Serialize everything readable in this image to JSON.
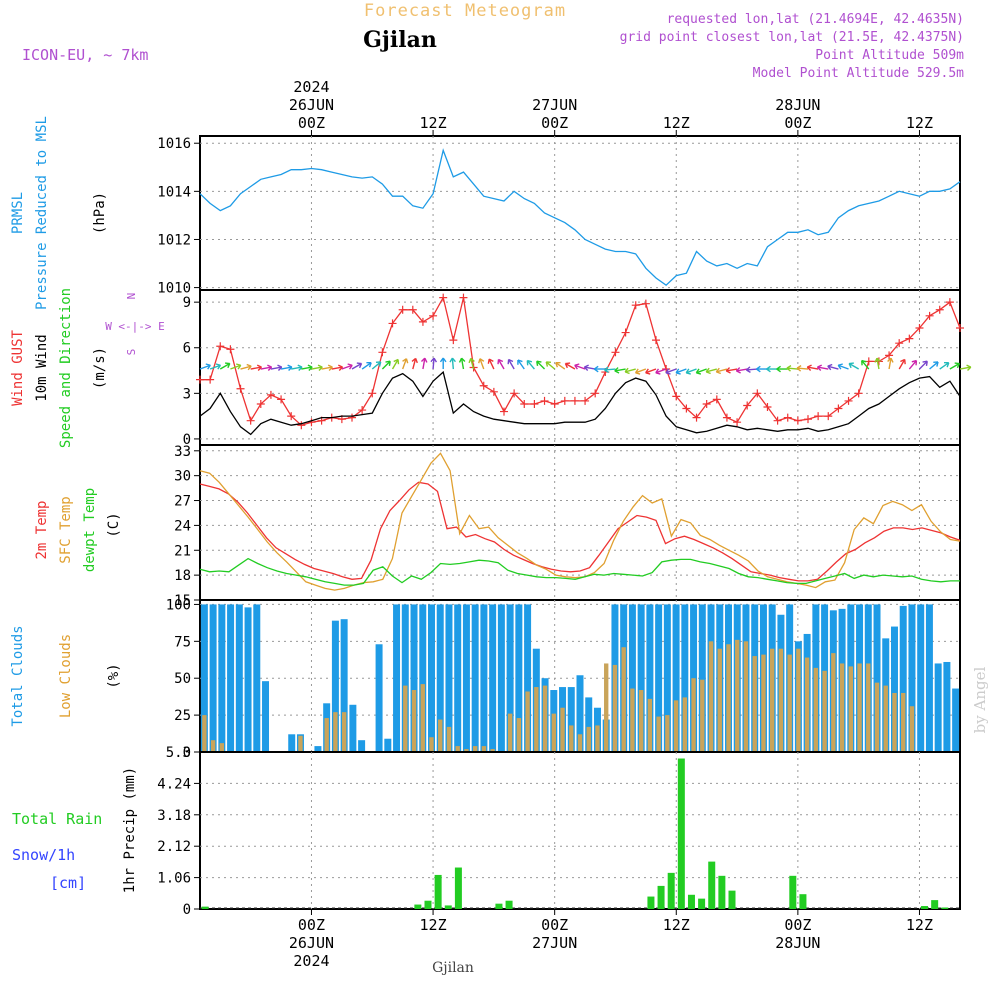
{
  "header": {
    "title": "Forecast Meteogram",
    "location": "Gjilan",
    "model": "ICON-EU, ~ 7km",
    "requested": "requested lon,lat (21.4694E, 42.4635N)",
    "grid_point": "grid point closest lon,lat (21.5E, 42.4375N)",
    "point_altitude": "Point Altitude 509m",
    "model_altitude": "Model Point Altitude 529.5m",
    "footer_location": "Gjilan",
    "watermark": "by Angel"
  },
  "time_axis": {
    "top": [
      {
        "hour": 24,
        "lines": [
          "2024",
          "26JUN",
          "00Z"
        ]
      },
      {
        "hour": 36,
        "lines": [
          "12Z"
        ]
      },
      {
        "hour": 48,
        "lines": [
          "27JUN",
          "00Z"
        ]
      },
      {
        "hour": 60,
        "lines": [
          "12Z"
        ]
      },
      {
        "hour": 72,
        "lines": [
          "28JUN",
          "00Z"
        ]
      },
      {
        "hour": 84,
        "lines": [
          "12Z"
        ]
      }
    ],
    "bottom": [
      {
        "hour": 24,
        "lines": [
          "00Z",
          "26JUN",
          "2024"
        ]
      },
      {
        "hour": 36,
        "lines": [
          "12Z"
        ]
      },
      {
        "hour": 48,
        "lines": [
          "00Z",
          "27JUN"
        ]
      },
      {
        "hour": 60,
        "lines": [
          "12Z"
        ]
      },
      {
        "hour": 72,
        "lines": [
          "00Z",
          "28JUN"
        ]
      },
      {
        "hour": 84,
        "lines": [
          "12Z"
        ]
      }
    ]
  },
  "colors": {
    "blue": "#1e9be6",
    "red": "#ee3333",
    "orange": "#e0a030",
    "green": "#22cc22",
    "purple": "#b050d0",
    "title": "#f0c070",
    "snow": "#3344ff",
    "low": "#c9a45a"
  },
  "chart_data": [
    {
      "type": "line",
      "panel": "pressure",
      "ylabel": [
        "PRMSL",
        "Pressure Reduced to MSL",
        "(hPa)"
      ],
      "ylim": [
        1009.9,
        1016.3
      ],
      "yticks": [
        "1010",
        "1012",
        "1014",
        "1016"
      ],
      "x_start_hour": 13,
      "x_end_hour": 88,
      "series": [
        {
          "values": [
            1013.9,
            1013.5,
            1013.2,
            1013.4,
            1013.9,
            1014.2,
            1014.5,
            1014.6,
            1014.7,
            1014.9,
            1014.9,
            1014.95,
            1014.9,
            1014.8,
            1014.7,
            1014.6,
            1014.55,
            1014.6,
            1014.3,
            1013.8,
            1013.8,
            1013.4,
            1013.3,
            1013.9,
            1015.7,
            1014.6,
            1014.8,
            1014.3,
            1013.8,
            1013.7,
            1013.6,
            1014.0,
            1013.7,
            1013.5,
            1013.1,
            1012.9,
            1012.7,
            1012.4,
            1012.0,
            1011.8,
            1011.6,
            1011.5,
            1011.5,
            1011.4,
            1010.8,
            1010.4,
            1010.1,
            1010.5,
            1010.6,
            1011.5,
            1011.1,
            1010.9,
            1011.0,
            1010.8,
            1011.0,
            1010.9,
            1011.7,
            1012.0,
            1012.3,
            1012.3,
            1012.4,
            1012.2,
            1012.3,
            1012.9,
            1013.2,
            1013.4,
            1013.5,
            1013.6,
            1013.8,
            1014.0,
            1013.9,
            1013.8,
            1014.0,
            1014.0,
            1014.1,
            1014.4
          ]
        }
      ]
    },
    {
      "type": "line",
      "panel": "wind",
      "ylabel": [
        "Wind GUST",
        "10m Wind",
        "Speed and Direction",
        "(m/s)"
      ],
      "compass": [
        "N",
        "W <-|-> E",
        "S"
      ],
      "ylim": [
        -0.4,
        9.8
      ],
      "yticks": [
        "0",
        "3",
        "6",
        "9"
      ],
      "x_start_hour": 13,
      "x_end_hour": 88,
      "series": [
        {
          "name": "Wind GUST",
          "values": [
            3.9,
            3.9,
            6.1,
            5.9,
            3.3,
            1.2,
            2.3,
            2.9,
            2.6,
            1.5,
            0.9,
            1.1,
            1.2,
            1.4,
            1.3,
            1.4,
            1.9,
            3.0,
            5.7,
            7.6,
            8.5,
            8.5,
            7.7,
            8.1,
            9.3,
            6.5,
            9.3,
            4.7,
            3.5,
            3.1,
            1.8,
            3.0,
            2.3,
            2.3,
            2.5,
            2.3,
            2.5,
            2.5,
            2.5,
            3.0,
            4.4,
            5.7,
            7.0,
            8.8,
            8.9,
            6.5,
            4.6,
            2.8,
            2.0,
            1.4,
            2.3,
            2.6,
            1.4,
            1.1,
            2.2,
            3.0,
            2.1,
            1.2,
            1.4,
            1.2,
            1.3,
            1.5,
            1.5,
            2.0,
            2.5,
            3.0,
            5.1,
            5.1,
            5.5,
            6.3,
            6.6,
            7.3,
            8.1,
            8.5,
            9.0,
            7.3
          ]
        },
        {
          "name": "10m Wind",
          "values": [
            1.5,
            2.0,
            3.0,
            1.8,
            0.8,
            0.3,
            1.0,
            1.3,
            1.1,
            0.9,
            1.0,
            1.2,
            1.4,
            1.4,
            1.5,
            1.5,
            1.6,
            1.7,
            3.0,
            4.0,
            4.3,
            3.8,
            2.8,
            3.8,
            4.4,
            1.7,
            2.3,
            1.8,
            1.5,
            1.3,
            1.2,
            1.1,
            1.0,
            1.0,
            1.0,
            1.0,
            1.1,
            1.1,
            1.1,
            1.3,
            2.0,
            3.0,
            3.7,
            4.0,
            3.8,
            2.9,
            1.5,
            0.8,
            0.6,
            0.4,
            0.5,
            0.7,
            0.9,
            0.8,
            0.6,
            0.7,
            0.6,
            0.5,
            0.6,
            0.6,
            0.7,
            0.5,
            0.6,
            0.8,
            1.0,
            1.5,
            2.0,
            2.3,
            2.8,
            3.3,
            3.7,
            4.0,
            4.1,
            3.4,
            3.8,
            2.8
          ]
        }
      ],
      "arrow_dirs_deg": [
        70,
        70,
        60,
        70,
        75,
        80,
        80,
        80,
        80,
        80,
        80,
        80,
        80,
        80,
        70,
        60,
        55,
        50,
        45,
        30,
        20,
        15,
        10,
        5,
        0,
        355,
        350,
        345,
        340,
        335,
        330,
        330,
        325,
        320,
        315,
        310,
        305,
        300,
        290,
        280,
        270,
        265,
        260,
        255,
        250,
        250,
        250,
        250,
        250,
        250,
        250,
        255,
        255,
        260,
        260,
        265,
        270,
        270,
        270,
        275,
        275,
        280,
        280,
        285,
        290,
        300,
        320,
        350,
        10,
        30,
        40,
        45,
        50,
        55,
        60,
        80
      ]
    },
    {
      "type": "line",
      "panel": "temperature",
      "ylabel": [
        "2m Temp",
        "SFC Temp",
        "dewpt Temp",
        "(C)"
      ],
      "ylim": [
        15,
        33.7
      ],
      "yticks": [
        "15",
        "18",
        "21",
        "24",
        "27",
        "30",
        "33"
      ],
      "x_start_hour": 13,
      "x_end_hour": 88,
      "series": [
        {
          "name": "2m Temp",
          "values": [
            29.0,
            28.7,
            28.4,
            27.8,
            26.8,
            25.5,
            24.0,
            22.5,
            21.3,
            20.6,
            19.9,
            19.3,
            18.8,
            18.5,
            18.2,
            17.8,
            17.5,
            17.6,
            19.8,
            23.6,
            25.8,
            27.0,
            28.3,
            29.2,
            29.0,
            28.1,
            23.6,
            23.8,
            22.6,
            22.9,
            22.4,
            22.0,
            21.1,
            20.4,
            19.9,
            19.4,
            19.0,
            18.7,
            18.5,
            18.4,
            18.5,
            18.9,
            20.4,
            22.0,
            23.6,
            24.4,
            25.2,
            25.0,
            24.6,
            21.8,
            22.4,
            22.7,
            22.3,
            21.8,
            21.3,
            20.7,
            20.0,
            19.2,
            18.4,
            18.2,
            18.0,
            17.7,
            17.5,
            17.3,
            17.3,
            17.5,
            18.5,
            19.6,
            20.6,
            21.1,
            21.9,
            22.5,
            23.3,
            23.7,
            23.7,
            23.5,
            23.7,
            23.4,
            23.1,
            22.6,
            22.2
          ]
        },
        {
          "name": "SFC Temp",
          "values": [
            30.6,
            30.3,
            29.2,
            27.8,
            26.4,
            25.0,
            23.5,
            22.0,
            20.7,
            19.6,
            18.4,
            17.2,
            16.8,
            16.4,
            16.2,
            16.4,
            16.8,
            17.1,
            17.2,
            17.5,
            20.0,
            25.5,
            27.5,
            29.5,
            31.5,
            32.7,
            30.6,
            23.0,
            25.2,
            23.6,
            23.8,
            22.5,
            21.6,
            20.7,
            20.0,
            19.2,
            18.7,
            18.0,
            17.8,
            17.7,
            17.8,
            18.3,
            19.4,
            22.2,
            24.5,
            26.2,
            27.6,
            26.7,
            27.2,
            22.7,
            24.7,
            24.3,
            22.8,
            22.3,
            21.6,
            21.0,
            20.4,
            19.7,
            18.5,
            17.8,
            17.5,
            17.2,
            17.0,
            16.8,
            16.5,
            17.2,
            17.4,
            19.5,
            23.5,
            24.9,
            24.2,
            26.4,
            26.9,
            26.5,
            25.8,
            26.5,
            24.5,
            23.2,
            22.3,
            22.1
          ]
        },
        {
          "name": "dewpt Temp",
          "values": [
            18.7,
            18.4,
            18.5,
            18.4,
            19.2,
            20.0,
            19.4,
            18.9,
            18.5,
            18.2,
            18.0,
            17.8,
            17.5,
            17.2,
            17.0,
            16.8,
            16.8,
            17.0,
            18.6,
            19.0,
            17.9,
            17.1,
            17.9,
            17.5,
            18.3,
            19.4,
            19.3,
            19.4,
            19.6,
            19.8,
            19.7,
            19.5,
            18.6,
            18.2,
            18.0,
            17.8,
            17.7,
            17.7,
            17.6,
            17.5,
            17.8,
            18.1,
            18.0,
            18.2,
            18.1,
            18.0,
            17.9,
            18.3,
            19.6,
            19.8,
            19.9,
            19.9,
            19.6,
            19.4,
            19.1,
            18.8,
            18.2,
            17.8,
            17.7,
            17.5,
            17.3,
            17.1,
            17.0,
            17.0,
            17.3,
            17.6,
            17.9,
            18.2,
            17.6,
            18.0,
            17.8,
            18.0,
            17.9,
            17.8,
            17.9,
            17.5,
            17.3,
            17.2,
            17.3,
            17.3
          ]
        }
      ]
    },
    {
      "type": "bar",
      "panel": "clouds",
      "ylabel": [
        "Total Clouds",
        "Low Clouds",
        "(%)"
      ],
      "ylim": [
        0,
        103
      ],
      "yticks": [
        "0",
        "25",
        "50",
        "75",
        "100"
      ],
      "x_start_hour": 13,
      "x_end_hour": 88,
      "series": [
        {
          "name": "Total Clouds",
          "values": [
            100,
            100,
            100,
            100,
            100,
            98,
            100,
            48,
            0,
            0,
            12,
            12,
            0,
            4,
            33,
            89,
            90,
            32,
            8,
            0,
            73,
            9,
            100,
            100,
            100,
            100,
            100,
            100,
            100,
            100,
            100,
            100,
            100,
            100,
            100,
            100,
            100,
            100,
            70,
            50,
            42,
            44,
            44,
            52,
            37,
            30,
            22,
            100,
            100,
            100,
            100,
            100,
            100,
            100,
            100,
            100,
            100,
            100,
            100,
            100,
            100,
            100,
            100,
            100,
            100,
            100,
            93,
            100,
            75,
            80,
            100,
            100,
            96,
            97,
            100,
            100,
            100,
            100,
            77,
            85,
            99,
            100,
            100,
            100,
            60,
            61,
            43
          ]
        },
        {
          "name": "Low Clouds",
          "values": [
            25,
            8,
            6,
            0,
            0,
            0,
            0,
            0,
            0,
            0,
            0,
            11,
            0,
            0,
            23,
            27,
            27,
            0,
            0,
            0,
            0,
            0,
            0,
            45,
            42,
            46,
            10,
            22,
            17,
            4,
            2,
            4,
            4,
            2,
            0,
            26,
            23,
            41,
            44,
            45,
            26,
            30,
            18,
            12,
            17,
            18,
            60,
            59,
            71,
            43,
            42,
            36,
            24,
            25,
            35,
            37,
            50,
            49,
            75,
            70,
            73,
            76,
            75,
            65,
            66,
            70,
            70,
            66,
            70,
            64,
            57,
            55,
            67,
            60,
            58,
            60,
            60,
            47,
            45,
            40,
            40,
            31
          ]
        }
      ]
    },
    {
      "type": "bar",
      "panel": "precip",
      "ylabel": [
        "Total Rain",
        "Snow/1h",
        "[cm]",
        "1hr Precip (mm)"
      ],
      "ylim": [
        0,
        5.3
      ],
      "yticks": [
        "0",
        "1.06",
        "2.12",
        "3.18",
        "4.24",
        "5.3"
      ],
      "x_start_hour": 13,
      "x_end_hour": 88,
      "series": [
        {
          "name": "1hr Precip",
          "points": [
            [
              13.5,
              0.08
            ],
            [
              34.5,
              0.15
            ],
            [
              35.5,
              0.28
            ],
            [
              36.5,
              1.15
            ],
            [
              37.5,
              0.12
            ],
            [
              38.5,
              1.4
            ],
            [
              42.5,
              0.18
            ],
            [
              43.5,
              0.28
            ],
            [
              57.5,
              0.42
            ],
            [
              58.5,
              0.78
            ],
            [
              59.5,
              1.22
            ],
            [
              60.5,
              5.08
            ],
            [
              61.5,
              0.48
            ],
            [
              62.5,
              0.35
            ],
            [
              63.5,
              1.6
            ],
            [
              64.5,
              1.12
            ],
            [
              65.5,
              0.62
            ],
            [
              71.5,
              1.12
            ],
            [
              72.5,
              0.5
            ],
            [
              84.5,
              0.1
            ],
            [
              85.5,
              0.3
            ],
            [
              86.5,
              0.05
            ]
          ]
        }
      ]
    }
  ]
}
